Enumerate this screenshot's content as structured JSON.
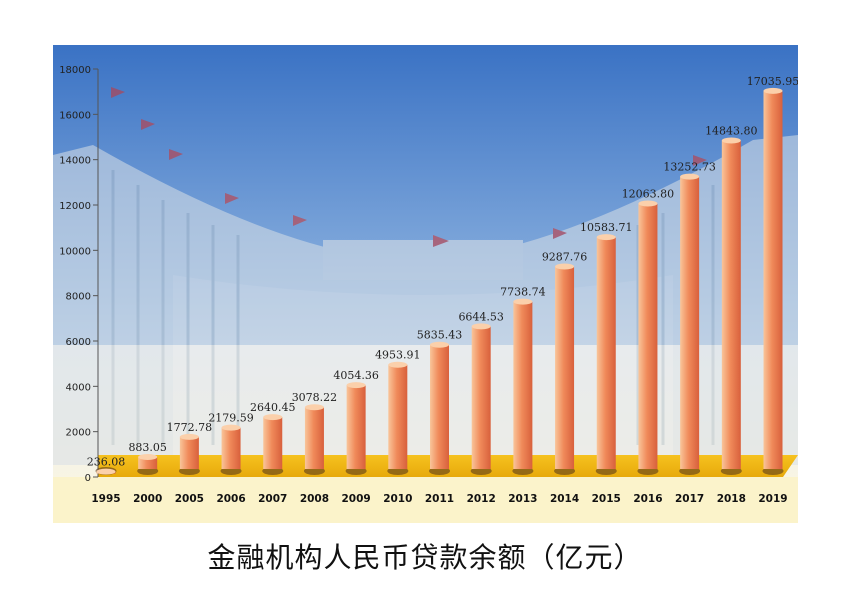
{
  "caption": "金融机构人民币贷款余额（亿元）",
  "colors": {
    "bar_light": "#f9c59a",
    "bar_mid": "#f08a5a",
    "bar_dark": "#d8603c",
    "floor": "#f2b617",
    "sky_top": "#3a72c4",
    "sky_bottom": "#cfe0f1"
  },
  "chart_data": {
    "type": "bar",
    "title": "金融机构人民币贷款余额（亿元）",
    "categories": [
      "1995",
      "2000",
      "2005",
      "2006",
      "2007",
      "2008",
      "2009",
      "2010",
      "2011",
      "2012",
      "2013",
      "2014",
      "2015",
      "2016",
      "2017",
      "2018",
      "2019"
    ],
    "values": [
      236.08,
      883.05,
      1772.78,
      2179.59,
      2640.45,
      3078.22,
      4054.36,
      4953.91,
      5835.43,
      6644.53,
      7738.74,
      9287.76,
      10583.71,
      12063.8,
      13252.73,
      14843.8,
      17035.95
    ],
    "value_labels": [
      "236.08",
      "883.05",
      "1772.78",
      "2179.59",
      "2640.45",
      "3078.22",
      "4054.36",
      "4953.91",
      "5835.43",
      "6644.53",
      "7738.74",
      "9287.76",
      "10583.71",
      "12063.80",
      "13252.73",
      "14843.80",
      "17035.95"
    ],
    "yticks": [
      "0",
      "2000",
      "4000",
      "6000",
      "8000",
      "10000",
      "12000",
      "14000",
      "16000",
      "18000"
    ],
    "ylim": [
      0,
      18000
    ],
    "grid": false,
    "legend": "none"
  }
}
